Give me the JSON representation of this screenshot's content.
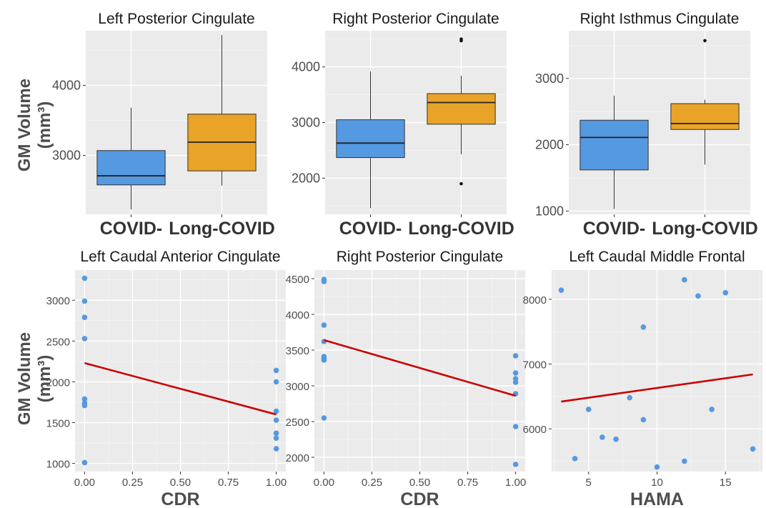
{
  "figure": {
    "row_ylabel_line1": "GM Volume",
    "row_ylabel_line2": "(mm³)"
  },
  "chart_data": [
    {
      "type": "box",
      "title": "Left Posterior Cingulate",
      "xlabel": "",
      "ylabel": "GM Volume (mm³)",
      "categories": [
        "COVID-",
        "Long-COVID"
      ],
      "ylim": [
        2160,
        4780
      ],
      "yticks": [
        3000,
        4000
      ],
      "boxes": [
        {
          "category": "COVID-",
          "color": "#5599e0",
          "min": 2230,
          "q1": 2580,
          "median": 2710,
          "q3": 3070,
          "max": 3680,
          "outliers": []
        },
        {
          "category": "Long-COVID",
          "color": "#e8a328",
          "min": 2570,
          "q1": 2780,
          "median": 3190,
          "q3": 3590,
          "max": 4720,
          "outliers": []
        }
      ],
      "grid": true
    },
    {
      "type": "box",
      "title": "Right Posterior Cingulate",
      "xlabel": "",
      "ylabel": "",
      "categories": [
        "COVID-",
        "Long-COVID"
      ],
      "ylim": [
        1350,
        4650
      ],
      "yticks": [
        2000,
        3000,
        4000
      ],
      "boxes": [
        {
          "category": "COVID-",
          "color": "#5599e0",
          "min": 1460,
          "q1": 2370,
          "median": 2630,
          "q3": 3050,
          "max": 3920,
          "outliers": []
        },
        {
          "category": "Long-COVID",
          "color": "#e8a328",
          "min": 2430,
          "q1": 2970,
          "median": 3360,
          "q3": 3520,
          "max": 3840,
          "outliers": [
            4470,
            4500,
            1900
          ]
        }
      ],
      "grid": true
    },
    {
      "type": "box",
      "title": "Right Isthmus Cingulate",
      "xlabel": "",
      "ylabel": "",
      "categories": [
        "COVID-",
        "Long-COVID"
      ],
      "ylim": [
        950,
        3720
      ],
      "yticks": [
        1000,
        2000,
        3000
      ],
      "boxes": [
        {
          "category": "COVID-",
          "color": "#5599e0",
          "min": 1030,
          "q1": 1620,
          "median": 2110,
          "q3": 2370,
          "max": 2740,
          "outliers": []
        },
        {
          "category": "Long-COVID",
          "color": "#e8a328",
          "min": 1700,
          "q1": 2230,
          "median": 2320,
          "q3": 2620,
          "max": 2680,
          "outliers": [
            3570
          ]
        }
      ],
      "grid": true
    },
    {
      "type": "scatter",
      "title": "Left Caudal Anterior Cingulate",
      "xlabel": "CDR",
      "ylabel": "GM Volume (mm³)",
      "xlim": [
        -0.05,
        1.05
      ],
      "ylim": [
        900,
        3370
      ],
      "xticks": [
        "0.00",
        "0.25",
        "0.50",
        "0.75",
        "1.00"
      ],
      "yticks": [
        1000,
        1500,
        2000,
        2500,
        3000
      ],
      "points": [
        {
          "x": 0,
          "y": 3270
        },
        {
          "x": 0,
          "y": 2990
        },
        {
          "x": 0,
          "y": 2790
        },
        {
          "x": 0,
          "y": 2530
        },
        {
          "x": 0,
          "y": 1790
        },
        {
          "x": 0,
          "y": 1740
        },
        {
          "x": 0,
          "y": 1710
        },
        {
          "x": 0,
          "y": 1010
        },
        {
          "x": 1,
          "y": 2140
        },
        {
          "x": 1,
          "y": 2000
        },
        {
          "x": 1,
          "y": 1640
        },
        {
          "x": 1,
          "y": 1530
        },
        {
          "x": 1,
          "y": 1370
        },
        {
          "x": 1,
          "y": 1310
        },
        {
          "x": 1,
          "y": 1180
        }
      ],
      "fit_line": {
        "x": [
          0,
          1
        ],
        "y": [
          2230,
          1600
        ],
        "color": "#cc0000"
      },
      "point_color": "#5599e0",
      "grid": true
    },
    {
      "type": "scatter",
      "title": "Right Posterior Cingulate",
      "xlabel": "CDR",
      "ylabel": "",
      "xlim": [
        -0.05,
        1.05
      ],
      "ylim": [
        1800,
        4620
      ],
      "xticks": [
        "0.00",
        "0.25",
        "0.50",
        "0.75",
        "1.00"
      ],
      "yticks": [
        2000,
        2500,
        3000,
        3500,
        4000,
        4500
      ],
      "points": [
        {
          "x": 0,
          "y": 4490
        },
        {
          "x": 0,
          "y": 4460
        },
        {
          "x": 0,
          "y": 3850
        },
        {
          "x": 0,
          "y": 3620
        },
        {
          "x": 0,
          "y": 3410
        },
        {
          "x": 0,
          "y": 3380
        },
        {
          "x": 0,
          "y": 3360
        },
        {
          "x": 0,
          "y": 2550
        },
        {
          "x": 1,
          "y": 3420
        },
        {
          "x": 1,
          "y": 3180
        },
        {
          "x": 1,
          "y": 3100
        },
        {
          "x": 1,
          "y": 3050
        },
        {
          "x": 1,
          "y": 2890
        },
        {
          "x": 1,
          "y": 2430
        },
        {
          "x": 1,
          "y": 1900
        }
      ],
      "fit_line": {
        "x": [
          0,
          1
        ],
        "y": [
          3640,
          2860
        ],
        "color": "#cc0000"
      },
      "point_color": "#5599e0",
      "grid": true
    },
    {
      "type": "scatter",
      "title": "Left Caudal Middle Frontal",
      "xlabel": "HAMA",
      "ylabel": "",
      "xlim": [
        2.3,
        17.7
      ],
      "ylim": [
        5340,
        8450
      ],
      "xticks": [
        "5",
        "10",
        "15"
      ],
      "xtick_values": [
        5,
        10,
        15
      ],
      "yticks": [
        6000,
        7000,
        8000
      ],
      "points": [
        {
          "x": 3,
          "y": 8140
        },
        {
          "x": 4,
          "y": 5540
        },
        {
          "x": 5,
          "y": 6300
        },
        {
          "x": 6,
          "y": 5870
        },
        {
          "x": 7,
          "y": 5840
        },
        {
          "x": 8,
          "y": 6480
        },
        {
          "x": 9,
          "y": 7570
        },
        {
          "x": 9,
          "y": 6140
        },
        {
          "x": 10,
          "y": 5410
        },
        {
          "x": 12,
          "y": 8300
        },
        {
          "x": 12,
          "y": 5500
        },
        {
          "x": 13,
          "y": 8050
        },
        {
          "x": 14,
          "y": 6300
        },
        {
          "x": 15,
          "y": 8100
        },
        {
          "x": 17,
          "y": 5690
        }
      ],
      "fit_line": {
        "x": [
          3,
          17
        ],
        "y": [
          6420,
          6840
        ],
        "color": "#cc0000"
      },
      "point_color": "#5599e0",
      "grid": true
    }
  ]
}
